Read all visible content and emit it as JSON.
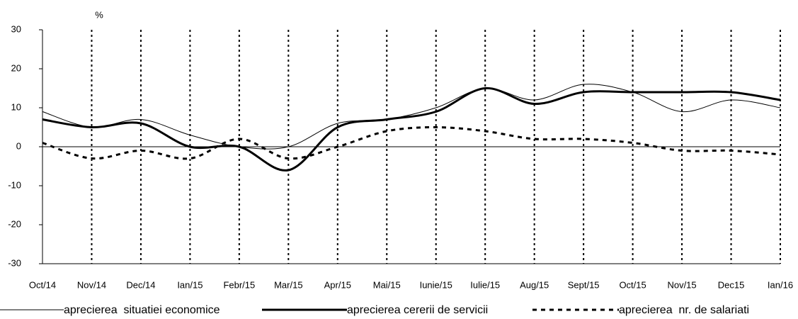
{
  "chart_data": {
    "type": "line",
    "y_label": "%",
    "categories": [
      "Oct/14",
      "Nov/14",
      "Dec/14",
      "Ian/15",
      "Febr/15",
      "Mar/15",
      "Apr/15",
      "Mai/15",
      "Iunie/15",
      "Iulie/15",
      "Aug/15",
      "Sept/15",
      "Oct/15",
      "Nov/15",
      "Dec15",
      "Ian/16"
    ],
    "series": [
      {
        "name": "aprecierea  situatiei economice",
        "color": "#000000",
        "line_width": 1,
        "dashed": false,
        "values": [
          9,
          5,
          7,
          3,
          0,
          0,
          6,
          7,
          10,
          15,
          12,
          16,
          14,
          9,
          12,
          10
        ]
      },
      {
        "name": "aprecierea cererii de servicii",
        "color": "#000000",
        "line_width": 3,
        "dashed": false,
        "values": [
          7,
          5,
          6,
          0,
          0,
          -6,
          5,
          7,
          9,
          15,
          11,
          14,
          14,
          14,
          14,
          12
        ]
      },
      {
        "name": "aprecierea  nr. de salariati",
        "color": "#000000",
        "line_width": 3,
        "dashed": true,
        "values": [
          1,
          -3,
          -1,
          -3,
          2,
          -3,
          0,
          4,
          5,
          4,
          2,
          2,
          1,
          -1,
          -1,
          -2
        ]
      }
    ],
    "ylim": [
      -30,
      30
    ],
    "yticks": [
      -30,
      -20,
      -10,
      0,
      10,
      20,
      30
    ],
    "vertical_grid": true
  }
}
